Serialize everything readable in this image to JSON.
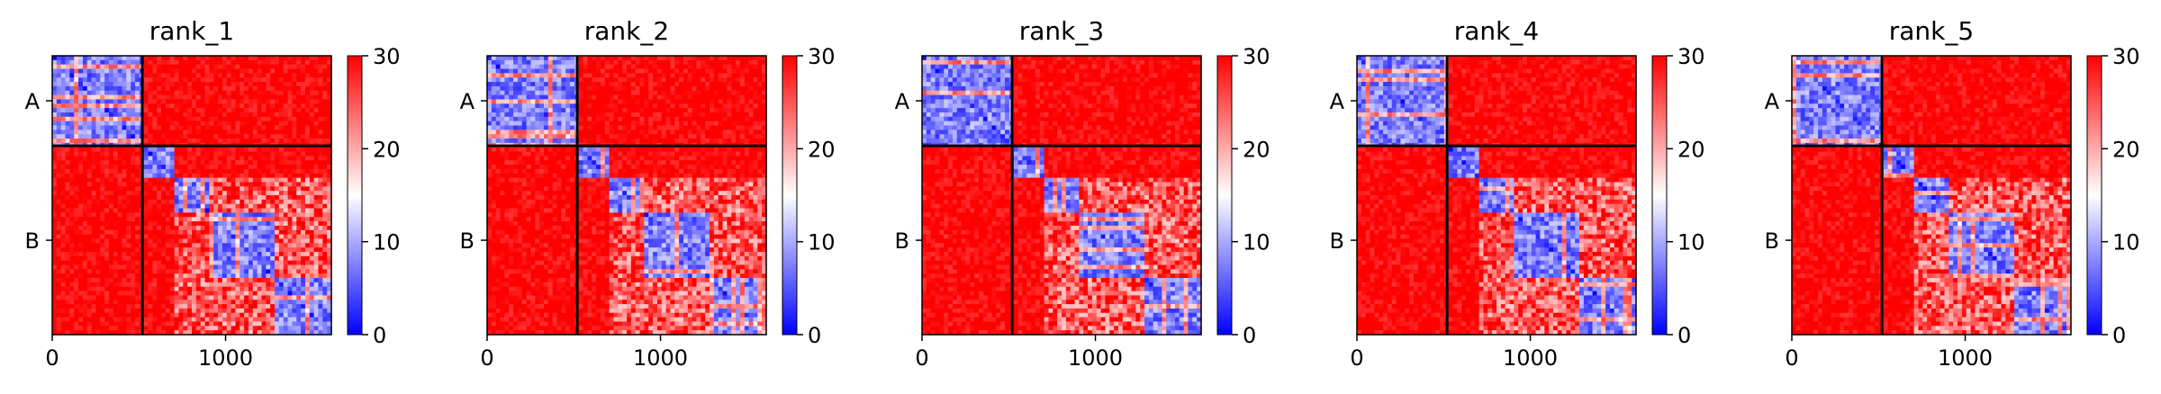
{
  "chart_data": [
    {
      "type": "heatmap",
      "title": "rank_1",
      "chain_labels": [
        "A",
        "B"
      ],
      "chain_boundary": 520,
      "n_residues": 1610,
      "xticks": [
        0,
        1000
      ],
      "colorbar": {
        "min": 0,
        "max": 30,
        "ticks": [
          0,
          10,
          20,
          30
        ],
        "cmap": "bwr"
      },
      "domains": [
        [
          520,
          700
        ],
        [
          700,
          900
        ],
        [
          900,
          1290
        ],
        [
          1290,
          1610
        ]
      ]
    },
    {
      "type": "heatmap",
      "title": "rank_2",
      "chain_labels": [
        "A",
        "B"
      ],
      "chain_boundary": 520,
      "n_residues": 1610,
      "xticks": [
        0,
        1000
      ],
      "colorbar": {
        "min": 0,
        "max": 30,
        "ticks": [
          0,
          10,
          20,
          30
        ],
        "cmap": "bwr"
      },
      "domains": [
        [
          520,
          700
        ],
        [
          700,
          900
        ],
        [
          900,
          1290
        ],
        [
          1290,
          1610
        ]
      ]
    },
    {
      "type": "heatmap",
      "title": "rank_3",
      "chain_labels": [
        "A",
        "B"
      ],
      "chain_boundary": 520,
      "n_residues": 1610,
      "xticks": [
        0,
        1000
      ],
      "colorbar": {
        "min": 0,
        "max": 30,
        "ticks": [
          0,
          10,
          20,
          30
        ],
        "cmap": "bwr"
      },
      "domains": [
        [
          520,
          700
        ],
        [
          700,
          900
        ],
        [
          900,
          1290
        ],
        [
          1290,
          1610
        ]
      ]
    },
    {
      "type": "heatmap",
      "title": "rank_4",
      "chain_labels": [
        "A",
        "B"
      ],
      "chain_boundary": 520,
      "n_residues": 1610,
      "xticks": [
        0,
        1000
      ],
      "colorbar": {
        "min": 0,
        "max": 30,
        "ticks": [
          0,
          10,
          20,
          30
        ],
        "cmap": "bwr"
      },
      "domains": [
        [
          520,
          700
        ],
        [
          700,
          900
        ],
        [
          900,
          1290
        ],
        [
          1290,
          1610
        ]
      ]
    },
    {
      "type": "heatmap",
      "title": "rank_5",
      "chain_labels": [
        "A",
        "B"
      ],
      "chain_boundary": 520,
      "n_residues": 1610,
      "xticks": [
        0,
        1000
      ],
      "colorbar": {
        "min": 0,
        "max": 30,
        "ticks": [
          0,
          10,
          20,
          30
        ],
        "cmap": "bwr"
      },
      "domains": [
        [
          520,
          700
        ],
        [
          700,
          900
        ],
        [
          900,
          1290
        ],
        [
          1290,
          1610
        ]
      ]
    }
  ],
  "colors": {
    "low": "#0000ff",
    "mid": "#ffffff",
    "high": "#ff0000",
    "boundary": "#000000"
  }
}
